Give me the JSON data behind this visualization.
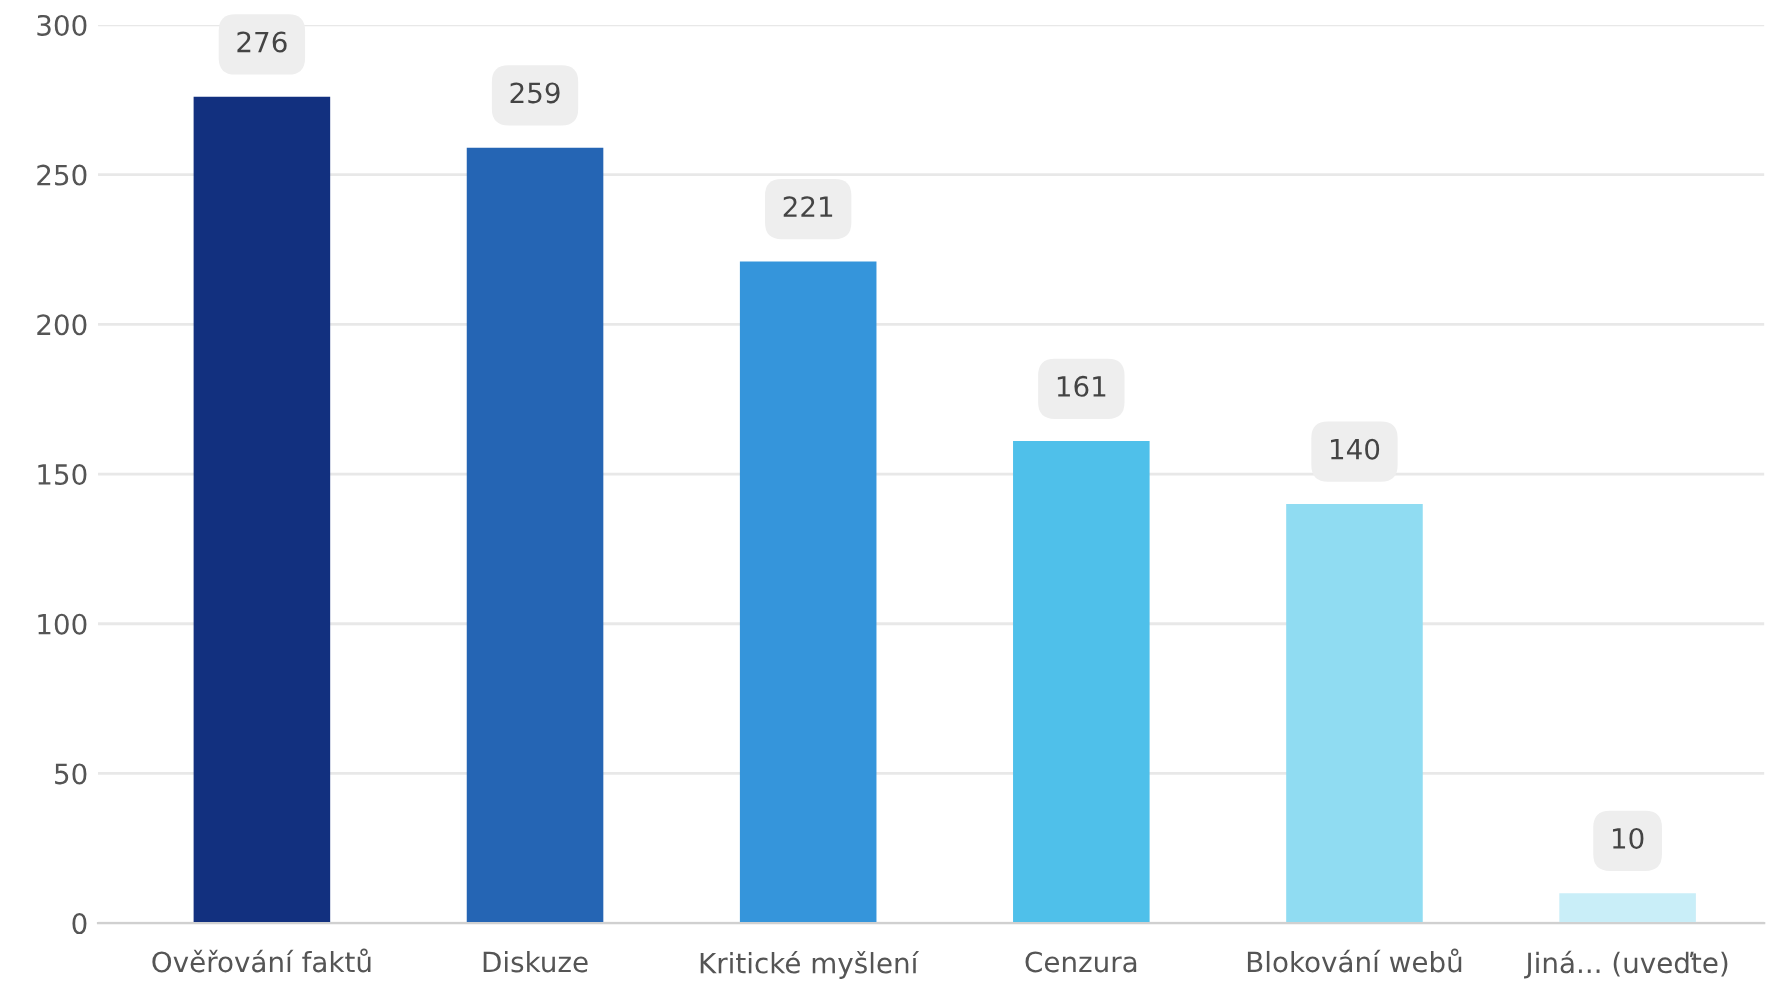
{
  "chart_data": {
    "type": "bar",
    "categories": [
      "Ověřování faktů",
      "Diskuze",
      "Kritické myšlení",
      "Cenzura",
      "Blokování webů",
      "Jiná... (uveďte)"
    ],
    "values": [
      276,
      259,
      221,
      161,
      140,
      10
    ],
    "colors": [
      "#12307f",
      "#2565b4",
      "#3595db",
      "#4fc0ea",
      "#90dcf2",
      "#c9eef8"
    ],
    "ylim": [
      0,
      300
    ],
    "yticks": [
      0,
      50,
      100,
      150,
      200,
      250,
      300
    ],
    "grid": "y",
    "data_labels": true
  }
}
